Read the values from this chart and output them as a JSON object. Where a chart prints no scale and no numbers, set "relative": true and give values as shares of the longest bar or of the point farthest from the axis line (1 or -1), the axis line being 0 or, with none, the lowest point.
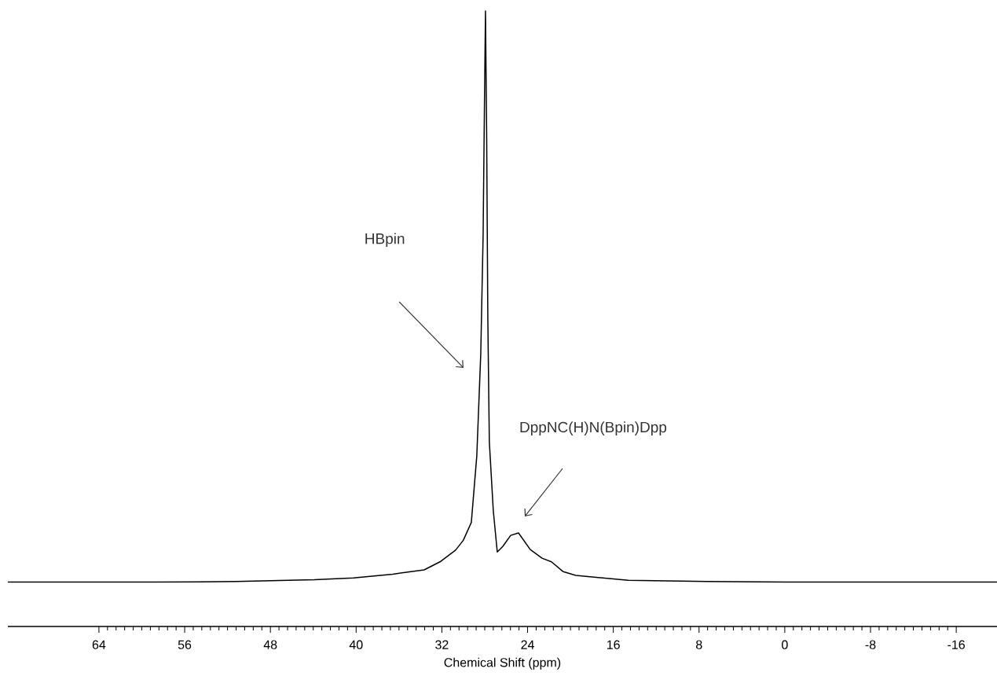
{
  "chart_data": {
    "type": "line",
    "relative": true,
    "xlabel": "Chemical Shift (ppm)",
    "xlim": [
      72.5,
      -19.8
    ],
    "xticks": [
      64,
      56,
      48,
      40,
      32,
      24,
      16,
      8,
      0,
      -8,
      -16
    ],
    "color": "#000000",
    "x": [
      72.5,
      58.6,
      51.2,
      43.9,
      40.25,
      36.58,
      33.65,
      32.18,
      30.72,
      30.0,
      29.25,
      28.74,
      28.37,
      28.15,
      28.0,
      27.93,
      27.82,
      27.71,
      27.57,
      27.2,
      26.83,
      26.32,
      25.58,
      24.85,
      23.75,
      22.65,
      21.77,
      20.67,
      19.5,
      14.6,
      7.25,
      -0.08,
      -7.4,
      -19.8
    ],
    "values": [
      0.072,
      0.072,
      0.073,
      0.076,
      0.079,
      0.085,
      0.092,
      0.105,
      0.124,
      0.14,
      0.169,
      0.277,
      0.443,
      0.635,
      0.89,
      1,
      0.8,
      0.5,
      0.3,
      0.188,
      0.121,
      0.13,
      0.148,
      0.152,
      0.125,
      0.111,
      0.105,
      0.089,
      0.083,
      0.075,
      0.073,
      0.072,
      0.072,
      0.072
    ],
    "annotations": [
      "HBpin",
      "DppNC(H)N(Bpin)Dpp"
    ]
  }
}
